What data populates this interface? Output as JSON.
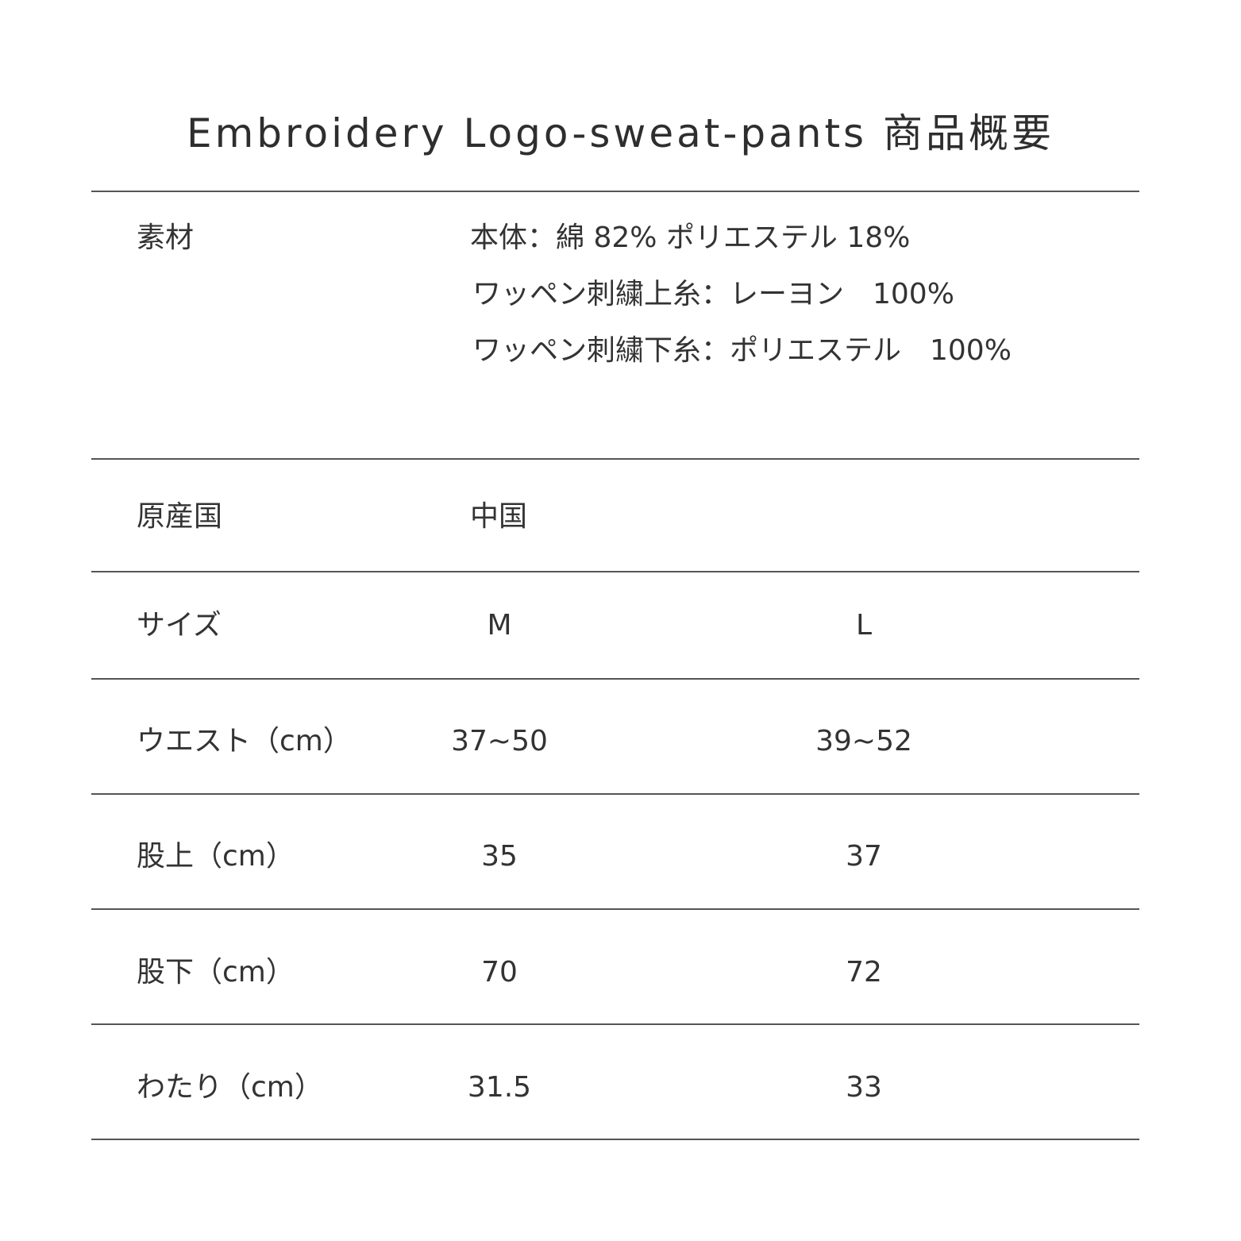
{
  "title": "Embroidery Logo-sweat-pants 商品概要",
  "rows": {
    "material": {
      "label": "素材",
      "lines": [
        "本体：綿 82% ポリエステル 18%",
        "ワッペン刺繍上糸：レーヨン　100%",
        "ワッペン刺繍下糸：ポリエステル　100%"
      ]
    },
    "origin": {
      "label": "原産国",
      "value": "中国"
    },
    "size": {
      "label": "サイズ",
      "m": "M",
      "l": "L"
    },
    "waist": {
      "label": "ウエスト（cm）",
      "m": "37~50",
      "l": "39~52"
    },
    "rise": {
      "label": "股上（cm）",
      "m": "35",
      "l": "37"
    },
    "inseam": {
      "label": "股下（cm）",
      "m": "70",
      "l": "72"
    },
    "thigh": {
      "label": "わたり（cm）",
      "m": "31.5",
      "l": "33"
    }
  }
}
